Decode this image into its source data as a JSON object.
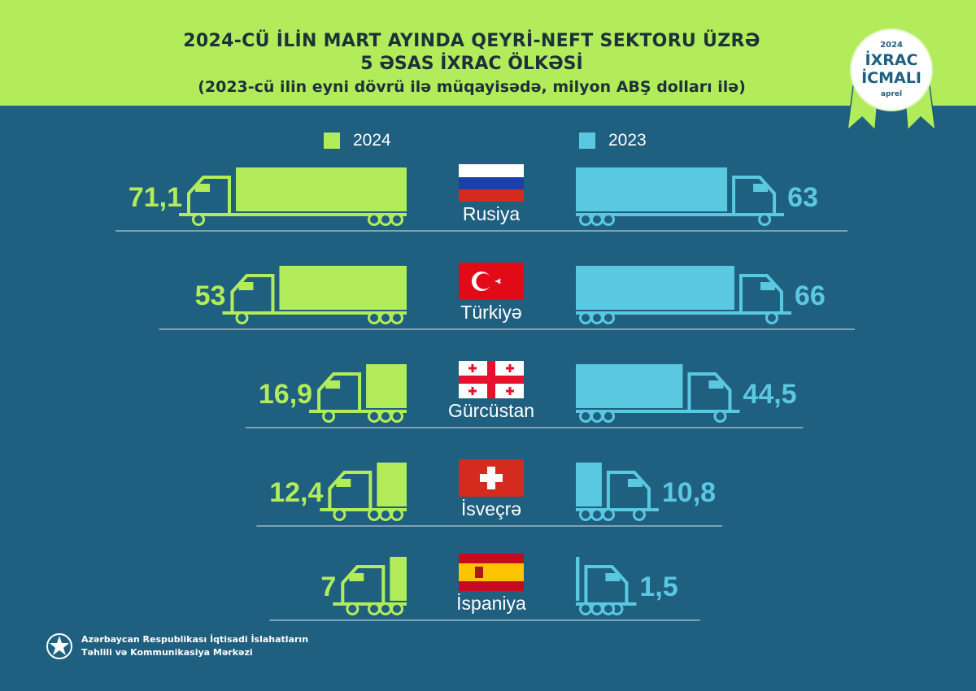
{
  "header": {
    "title_line1": "2024-CÜ İLİN MART AYINDA QEYRİ-NEFT SEKTORU ÜZRƏ",
    "title_line2": "5 ƏSAS İXRAC ÖLKƏSİ",
    "subtitle": "(2023-cü ilin eyni dövrü ilə müqayisədə, milyon ABŞ dolları ilə)"
  },
  "badge": {
    "year": "2024",
    "line1": "İXRAC",
    "line2": "İCMALI",
    "month": "aprel"
  },
  "colors": {
    "accent_green": "#b3ec5b",
    "accent_blue": "#5bc8e2",
    "background": "#1f5f7f"
  },
  "chart_data": {
    "type": "bar",
    "title": "2024-CÜ İLİN MART AYINDA QEYRİ-NEFT SEKTORU ÜZRƏ 5 ƏSAS İXRAC ÖLKƏSİ",
    "subtitle": "(2023-cü ilin eyni dövrü ilə müqayisədə, milyon ABŞ dolları ilə)",
    "categories": [
      "Rusiya",
      "Türkiyə",
      "Gürcüstan",
      "İsveçrə",
      "İspaniya"
    ],
    "series": [
      {
        "name": "2024",
        "values": [
          71.1,
          53,
          16.9,
          12.4,
          7
        ],
        "labels": [
          "71,1",
          "53",
          "16,9",
          "12,4",
          "7"
        ]
      },
      {
        "name": "2023",
        "values": [
          63,
          66,
          44.5,
          10.8,
          1.5
        ],
        "labels": [
          "63",
          "66",
          "44,5",
          "10,8",
          "1,5"
        ]
      }
    ],
    "legend": [
      "2024",
      "2023"
    ],
    "xlim": [
      0,
      71.1
    ]
  },
  "footer": {
    "line1": "Azərbaycan Respublikası İqtisadi İslahatların",
    "line2": "Təhlili və Kommunikasiya Mərkəzi"
  }
}
